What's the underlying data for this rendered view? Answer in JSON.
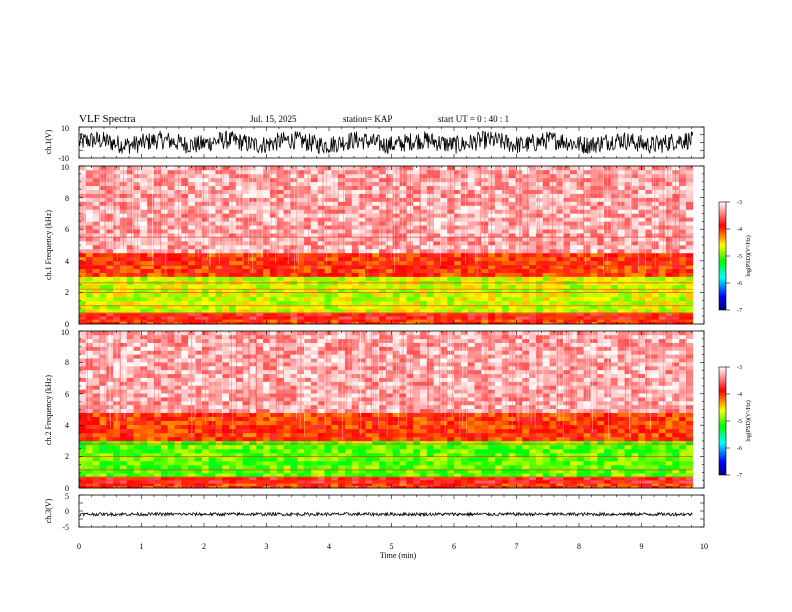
{
  "header": {
    "title": "VLF Spectra",
    "date": "Jul. 15, 2025",
    "station": "station= KAP",
    "start_ut": "start UT =  0 : 40 : 1"
  },
  "chart_data": [
    {
      "type": "line",
      "name": "ch.1 waveform",
      "ylabel": "ch.1(V)",
      "ylim": [
        -10,
        10
      ],
      "yticks": [
        "10",
        "-10"
      ],
      "xlim": [
        0,
        10
      ],
      "data_extent_min": 9.82,
      "signal_amplitude_v": 6,
      "color": "#000000"
    },
    {
      "type": "heatmap",
      "name": "ch.1 spectrogram",
      "ylabel": "ch.1 Frequency (kHz)",
      "ylim": [
        0,
        10
      ],
      "yticks": [
        "0",
        "2",
        "4",
        "6",
        "8",
        "10"
      ],
      "xlim": [
        0,
        10
      ],
      "data_extent_min": 9.82,
      "zlabel": "log(PSD)(V²/Hz)",
      "zlim": [
        -7,
        -3
      ],
      "zticks": [
        "-3",
        "-4",
        "-5",
        "-6",
        "-7"
      ],
      "colormap": [
        "#00007f",
        "#0000ff",
        "#00ffff",
        "#00ff00",
        "#ffff00",
        "#ff0000",
        "#ffffff"
      ],
      "bands": [
        {
          "fmin_khz": 0.0,
          "fmax_khz": 0.3,
          "log_psd": -4.0
        },
        {
          "fmin_khz": 0.3,
          "fmax_khz": 0.7,
          "log_psd": -3.8
        },
        {
          "fmin_khz": 0.7,
          "fmax_khz": 3.0,
          "log_psd": -4.7
        },
        {
          "fmin_khz": 3.0,
          "fmax_khz": 4.5,
          "log_psd": -4.0
        },
        {
          "fmin_khz": 4.5,
          "fmax_khz": 10.0,
          "log_psd": -3.3
        }
      ],
      "tones_khz": [
        0.5,
        0.7,
        1.15,
        2.0,
        2.2,
        2.6,
        3.7,
        5.5
      ]
    },
    {
      "type": "heatmap",
      "name": "ch.2 spectrogram",
      "ylabel": "ch.2 Frequency (kHz)",
      "ylim": [
        0,
        10
      ],
      "yticks": [
        "0",
        "2",
        "4",
        "6",
        "8",
        "10"
      ],
      "xlim": [
        0,
        10
      ],
      "data_extent_min": 9.82,
      "zlabel": "log(PSD)(V²/Hz)",
      "zlim": [
        -7,
        -3
      ],
      "zticks": [
        "-3",
        "-4",
        "-5",
        "-6",
        "-7"
      ],
      "colormap": [
        "#00007f",
        "#0000ff",
        "#00ffff",
        "#00ff00",
        "#ffff00",
        "#ff0000",
        "#ffffff"
      ],
      "bands": [
        {
          "fmin_khz": 0.0,
          "fmax_khz": 0.3,
          "log_psd": -4.0
        },
        {
          "fmin_khz": 0.3,
          "fmax_khz": 0.7,
          "log_psd": -3.8
        },
        {
          "fmin_khz": 0.7,
          "fmax_khz": 3.0,
          "log_psd": -5.0
        },
        {
          "fmin_khz": 3.0,
          "fmax_khz": 4.8,
          "log_psd": -4.0
        },
        {
          "fmin_khz": 4.8,
          "fmax_khz": 10.0,
          "log_psd": -3.3
        }
      ],
      "tones_khz": [
        0.5,
        0.7,
        1.15,
        2.0,
        2.8
      ]
    },
    {
      "type": "line",
      "name": "ch.3 waveform",
      "ylabel": "ch.3(V)",
      "ylim": [
        -5,
        5
      ],
      "yticks": [
        "5",
        "0",
        "-5"
      ],
      "xlim": [
        0,
        10
      ],
      "data_extent_min": 9.82,
      "signal_center_v": -1.0,
      "signal_amplitude_v": 0.5,
      "color": "#000000"
    }
  ],
  "x_axis": {
    "label": "Time (min)",
    "ticks": [
      "0",
      "1",
      "2",
      "3",
      "4",
      "5",
      "6",
      "7",
      "8",
      "9",
      "10"
    ]
  }
}
